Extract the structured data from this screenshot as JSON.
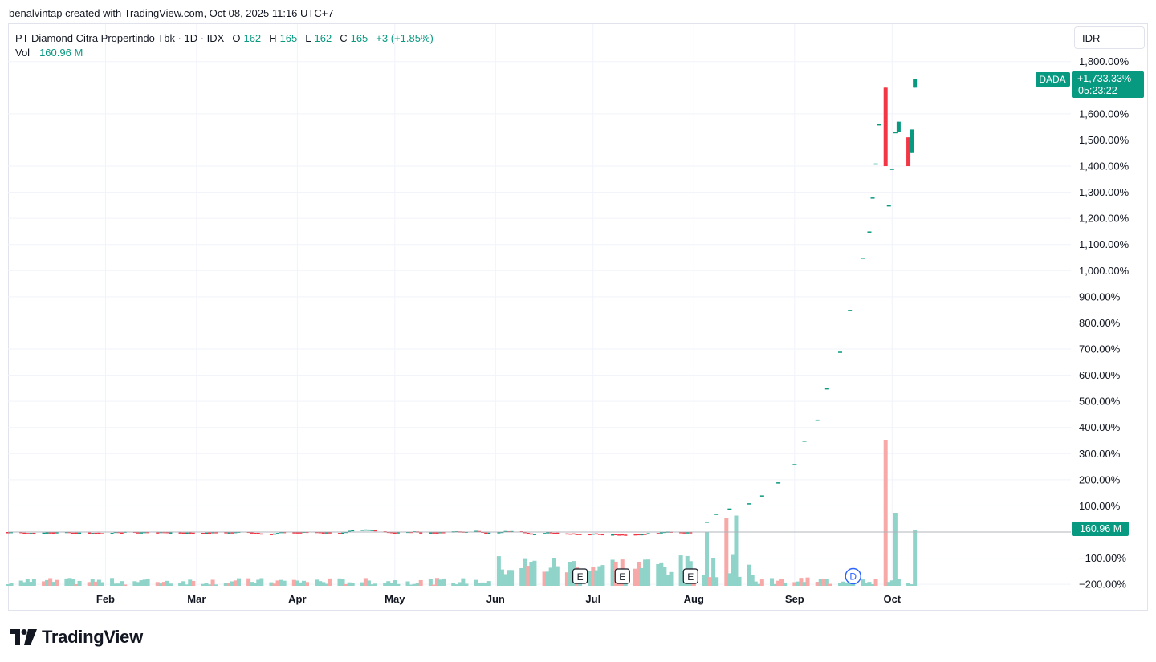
{
  "caption": "benalvintap created with TradingView.com, Oct 08, 2025 11:16 UTC+7",
  "legend": {
    "symbol_line": "PT Diamond Citra Propertindo Tbk · 1D · IDX",
    "o_label": "O",
    "o_value": "162",
    "h_label": "H",
    "h_value": "165",
    "l_label": "L",
    "l_value": "162",
    "c_label": "C",
    "c_value": "165",
    "change": "+3 (+1.85%)",
    "vol_label": "Vol",
    "vol_value": "160.96 M"
  },
  "currency": "IDR",
  "ticker_tag": "DADA",
  "price_tag": {
    "value": "+1,733.33%",
    "countdown": "05:23:22"
  },
  "volume_tag": "160.96 M",
  "logo_text": "TradingView",
  "colors": {
    "up": "#089981",
    "down": "#f23645",
    "vol_up": "#8fd3c9",
    "vol_down": "#f7a9a7",
    "grid": "#f0f3fa",
    "axis_text": "#131722",
    "event": "#2962ff"
  },
  "chart_data": {
    "type": "candlestick",
    "y_unit": "percent change",
    "ylim": [
      -200,
      1850
    ],
    "y_ticks": [
      "1,800.00%",
      "1,600.00%",
      "1,500.00%",
      "1,400.00%",
      "1,300.00%",
      "1,200.00%",
      "1,100.00%",
      "1,000.00%",
      "900.00%",
      "800.00%",
      "700.00%",
      "600.00%",
      "500.00%",
      "400.00%",
      "300.00%",
      "200.00%",
      "100.00%",
      "−100.00%",
      "−200.00%"
    ],
    "y_tick_values": [
      1800,
      1600,
      1500,
      1400,
      1300,
      1200,
      1100,
      1000,
      900,
      800,
      700,
      600,
      500,
      400,
      300,
      200,
      100,
      -100,
      -200
    ],
    "x_ticks": [
      "Feb",
      "Mar",
      "Apr",
      "May",
      "Jun",
      "Jul",
      "Aug",
      "Sep",
      "Oct"
    ],
    "x_tick_dates": [
      "2025-02-01",
      "2025-03-01",
      "2025-04-01",
      "2025-05-01",
      "2025-06-01",
      "2025-07-01",
      "2025-08-01",
      "2025-09-01",
      "2025-10-01"
    ],
    "x_start": "2025-01-02",
    "x_end": "2025-11-25",
    "last_value": 1733.33,
    "earnings_markers": [
      {
        "label": "E",
        "date": "2025-06-27"
      },
      {
        "label": "E",
        "date": "2025-07-10"
      },
      {
        "label": "E",
        "date": "2025-07-31"
      }
    ],
    "dividend_markers": [
      {
        "label": "D",
        "date": "2025-09-19"
      }
    ],
    "flat_phase": {
      "start": "2025-01-02",
      "end": "2025-07-31",
      "approx_range": [
        -40,
        30
      ]
    },
    "trend_candles": [
      {
        "date": "2025-08-05",
        "value": 40
      },
      {
        "date": "2025-08-08",
        "value": 70
      },
      {
        "date": "2025-08-12",
        "value": 90
      },
      {
        "date": "2025-08-18",
        "value": 110
      },
      {
        "date": "2025-08-22",
        "value": 140
      },
      {
        "date": "2025-08-27",
        "value": 190
      },
      {
        "date": "2025-09-01",
        "value": 260
      },
      {
        "date": "2025-09-04",
        "value": 350
      },
      {
        "date": "2025-09-08",
        "value": 430
      },
      {
        "date": "2025-09-11",
        "value": 550
      },
      {
        "date": "2025-09-15",
        "value": 690
      },
      {
        "date": "2025-09-18",
        "value": 850
      },
      {
        "date": "2025-09-22",
        "value": 1050
      },
      {
        "date": "2025-09-24",
        "value": 1150
      },
      {
        "date": "2025-09-25",
        "value": 1280
      },
      {
        "date": "2025-09-26",
        "value": 1410
      },
      {
        "date": "2025-09-27",
        "value": 1560
      }
    ],
    "final_candles": [
      {
        "date": "2025-09-29",
        "open": 1700,
        "high": 1700,
        "low": 1400,
        "close": 1400,
        "dir": "down"
      },
      {
        "date": "2025-09-30",
        "open": 1250,
        "high": 1250,
        "low": 1250,
        "close": 1250,
        "dir": "up"
      },
      {
        "date": "2025-10-01",
        "open": 1390,
        "high": 1390,
        "low": 1390,
        "close": 1390,
        "dir": "up"
      },
      {
        "date": "2025-10-02",
        "open": 1530,
        "high": 1530,
        "low": 1530,
        "close": 1530,
        "dir": "up"
      },
      {
        "date": "2025-10-03",
        "open": 1530,
        "high": 1570,
        "low": 1530,
        "close": 1570,
        "dir": "up"
      },
      {
        "date": "2025-10-06",
        "open": 1510,
        "high": 1510,
        "low": 1400,
        "close": 1400,
        "dir": "down"
      },
      {
        "date": "2025-10-07",
        "open": 1450,
        "high": 1540,
        "low": 1450,
        "close": 1540,
        "dir": "up"
      },
      {
        "date": "2025-10-08",
        "open": 1700,
        "high": 1733.33,
        "low": 1700,
        "close": 1733.33,
        "dir": "up"
      }
    ],
    "volume_spikes": [
      {
        "date": "2025-08-05",
        "value": 0.95,
        "dir": "up"
      },
      {
        "date": "2025-08-11",
        "value": 1.2,
        "dir": "down"
      },
      {
        "date": "2025-08-14",
        "value": 1.25,
        "dir": "up"
      },
      {
        "date": "2025-09-06",
        "value": 0.95,
        "dir": "up"
      },
      {
        "date": "2025-09-29",
        "value": 2.6,
        "dir": "down"
      },
      {
        "date": "2025-10-02",
        "value": 1.3,
        "dir": "up"
      },
      {
        "date": "2025-10-08",
        "value": 1.0,
        "dir": "up"
      }
    ]
  }
}
